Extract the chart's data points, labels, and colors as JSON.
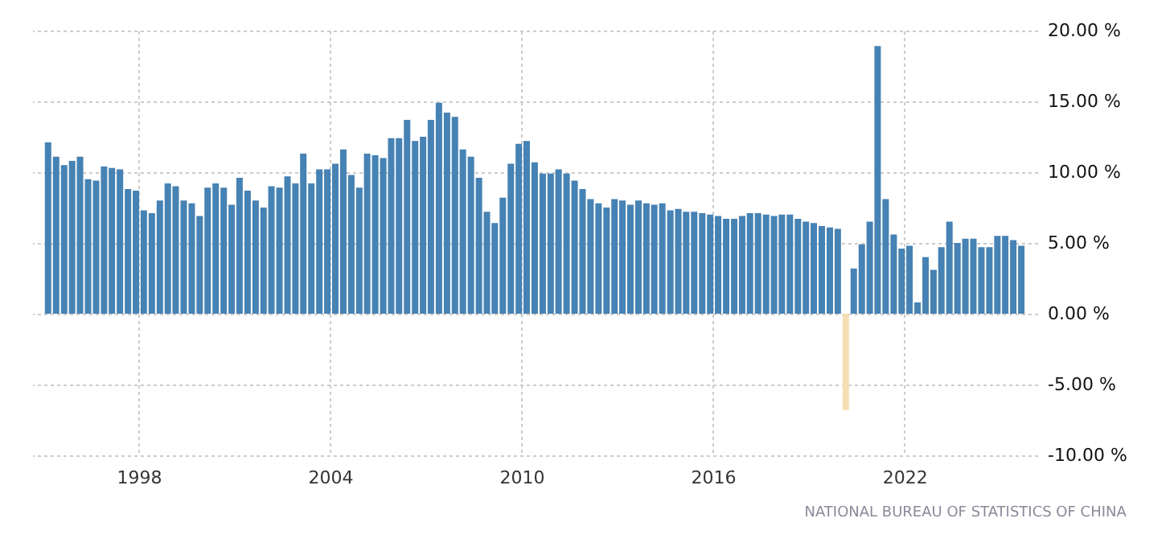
{
  "chart_data": {
    "type": "bar",
    "x": [
      "1995-03",
      "1995-06",
      "1995-09",
      "1995-12",
      "1996-03",
      "1996-06",
      "1996-09",
      "1996-12",
      "1997-03",
      "1997-06",
      "1997-09",
      "1997-12",
      "1998-03",
      "1998-06",
      "1998-09",
      "1998-12",
      "1999-03",
      "1999-06",
      "1999-09",
      "1999-12",
      "2000-03",
      "2000-06",
      "2000-09",
      "2000-12",
      "2001-03",
      "2001-06",
      "2001-09",
      "2001-12",
      "2002-03",
      "2002-06",
      "2002-09",
      "2002-12",
      "2003-03",
      "2003-06",
      "2003-09",
      "2003-12",
      "2004-03",
      "2004-06",
      "2004-09",
      "2004-12",
      "2005-03",
      "2005-06",
      "2005-09",
      "2005-12",
      "2006-03",
      "2006-06",
      "2006-09",
      "2006-12",
      "2007-03",
      "2007-06",
      "2007-09",
      "2007-12",
      "2008-03",
      "2008-06",
      "2008-09",
      "2008-12",
      "2009-03",
      "2009-06",
      "2009-09",
      "2009-12",
      "2010-03",
      "2010-06",
      "2010-09",
      "2010-12",
      "2011-03",
      "2011-06",
      "2011-09",
      "2011-12",
      "2012-03",
      "2012-06",
      "2012-09",
      "2012-12",
      "2013-03",
      "2013-06",
      "2013-09",
      "2013-12",
      "2014-03",
      "2014-06",
      "2014-09",
      "2014-12",
      "2015-03",
      "2015-06",
      "2015-09",
      "2015-12",
      "2016-03",
      "2016-06",
      "2016-09",
      "2016-12",
      "2017-03",
      "2017-06",
      "2017-09",
      "2017-12",
      "2018-03",
      "2018-06",
      "2018-09",
      "2018-12",
      "2019-03",
      "2019-06",
      "2019-09",
      "2019-12",
      "2020-03",
      "2020-06",
      "2020-09",
      "2020-12",
      "2021-03",
      "2021-06",
      "2021-09",
      "2021-12",
      "2022-03",
      "2022-06",
      "2022-09",
      "2022-12",
      "2023-03",
      "2023-06",
      "2023-09",
      "2023-12",
      "2024-03",
      "2024-06",
      "2024-09",
      "2024-12",
      "2025-03",
      "2025-06",
      "2025-09"
    ],
    "values": [
      12.1,
      11.1,
      10.5,
      10.8,
      11.1,
      9.5,
      9.4,
      10.4,
      10.3,
      10.2,
      8.8,
      8.7,
      7.3,
      7.1,
      8.0,
      9.2,
      9.0,
      8.0,
      7.8,
      6.9,
      8.9,
      9.2,
      8.9,
      7.7,
      9.6,
      8.7,
      8.0,
      7.5,
      9.0,
      8.9,
      9.7,
      9.2,
      11.3,
      9.2,
      10.2,
      10.2,
      10.6,
      11.6,
      9.8,
      8.9,
      11.3,
      11.2,
      11.0,
      12.4,
      12.4,
      13.7,
      12.2,
      12.5,
      13.7,
      14.9,
      14.2,
      13.9,
      11.6,
      11.1,
      9.6,
      7.2,
      6.4,
      8.2,
      10.6,
      12.0,
      12.2,
      10.7,
      9.9,
      9.9,
      10.2,
      9.9,
      9.4,
      8.8,
      8.1,
      7.8,
      7.5,
      8.1,
      8.0,
      7.7,
      8.0,
      7.8,
      7.7,
      7.8,
      7.3,
      7.4,
      7.2,
      7.2,
      7.1,
      7.0,
      6.9,
      6.7,
      6.7,
      6.9,
      7.1,
      7.1,
      7.0,
      6.9,
      7.0,
      7.0,
      6.7,
      6.5,
      6.4,
      6.2,
      6.1,
      6.0,
      -6.8,
      3.2,
      4.9,
      6.5,
      18.9,
      8.1,
      5.6,
      4.6,
      4.8,
      0.8,
      4.0,
      3.1,
      4.7,
      6.5,
      5.0,
      5.3,
      5.3,
      4.7,
      4.7,
      5.5,
      5.5,
      5.2,
      4.8
    ],
    "colors": [
      "#4682b4",
      "#4682b4",
      "#4682b4",
      "#4682b4",
      "#4682b4",
      "#4682b4",
      "#4682b4",
      "#4682b4",
      "#4682b4",
      "#4682b4",
      "#4682b4",
      "#4682b4",
      "#4682b4",
      "#4682b4",
      "#4682b4",
      "#4682b4",
      "#4682b4",
      "#4682b4",
      "#4682b4",
      "#4682b4",
      "#4682b4",
      "#4682b4",
      "#4682b4",
      "#4682b4",
      "#4682b4",
      "#4682b4",
      "#4682b4",
      "#4682b4",
      "#4682b4",
      "#4682b4",
      "#4682b4",
      "#4682b4",
      "#4682b4",
      "#4682b4",
      "#4682b4",
      "#4682b4",
      "#4682b4",
      "#4682b4",
      "#4682b4",
      "#4682b4",
      "#4682b4",
      "#4682b4",
      "#4682b4",
      "#4682b4",
      "#4682b4",
      "#4682b4",
      "#4682b4",
      "#4682b4",
      "#4682b4",
      "#4682b4",
      "#4682b4",
      "#4682b4",
      "#4682b4",
      "#4682b4",
      "#4682b4",
      "#4682b4",
      "#4682b4",
      "#4682b4",
      "#4682b4",
      "#4682b4",
      "#4682b4",
      "#4682b4",
      "#4682b4",
      "#4682b4",
      "#4682b4",
      "#4682b4",
      "#4682b4",
      "#4682b4",
      "#4682b4",
      "#4682b4",
      "#4682b4",
      "#4682b4",
      "#4682b4",
      "#4682b4",
      "#4682b4",
      "#4682b4",
      "#4682b4",
      "#4682b4",
      "#4682b4",
      "#4682b4",
      "#4682b4",
      "#4682b4",
      "#4682b4",
      "#4682b4",
      "#4682b4",
      "#4682b4",
      "#4682b4",
      "#4682b4",
      "#4682b4",
      "#4682b4",
      "#4682b4",
      "#4682b4",
      "#4682b4",
      "#4682b4",
      "#4682b4",
      "#4682b4",
      "#4682b4",
      "#4682b4",
      "#4682b4",
      "#4682b4",
      "#f5deb3",
      "#4682b4",
      "#4682b4",
      "#4682b4",
      "#4682b4",
      "#4682b4",
      "#4682b4",
      "#4682b4",
      "#4682b4",
      "#4682b4",
      "#4682b4",
      "#4682b4",
      "#4682b4",
      "#4682b4",
      "#4682b4",
      "#4682b4",
      "#4682b4",
      "#4682b4",
      "#4682b4",
      "#4682b4",
      "#4682b4",
      "#4682b4",
      "#4682b4"
    ],
    "xlim": [
      "1994-12",
      "2025-12"
    ],
    "xticks": [
      {
        "value": "1998",
        "label": "1998"
      },
      {
        "value": "2004",
        "label": "2004"
      },
      {
        "value": "2010",
        "label": "2010"
      },
      {
        "value": "2016",
        "label": "2016"
      },
      {
        "value": "2022",
        "label": "2022"
      }
    ],
    "ylim": [
      -10,
      20
    ],
    "yticks": [
      {
        "value": -10,
        "label": "-10.00 %"
      },
      {
        "value": -5,
        "label": "-5.00 %"
      },
      {
        "value": 0,
        "label": "0.00 %"
      },
      {
        "value": 5,
        "label": "5.00 %"
      },
      {
        "value": 10,
        "label": "10.00 %"
      },
      {
        "value": 15,
        "label": "15.00 %"
      },
      {
        "value": 20,
        "label": "20.00 %"
      }
    ],
    "grid": true,
    "annotations": [
      "NATIONAL BUREAU OF STATISTICS OF CHINA"
    ]
  }
}
